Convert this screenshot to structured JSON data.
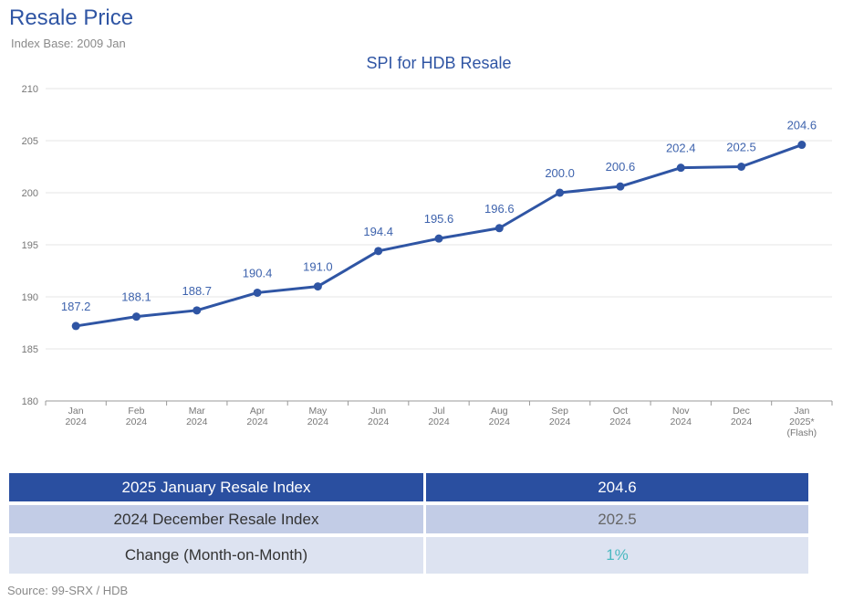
{
  "header": {
    "title": "Resale Price",
    "subtitle": "Index Base: 2009 Jan"
  },
  "chart_data": {
    "type": "line",
    "title": "SPI for HDB Resale",
    "categories": [
      [
        "Jan",
        "2024"
      ],
      [
        "Feb",
        "2024"
      ],
      [
        "Mar",
        "2024"
      ],
      [
        "Apr",
        "2024"
      ],
      [
        "May",
        "2024"
      ],
      [
        "Jun",
        "2024"
      ],
      [
        "Jul",
        "2024"
      ],
      [
        "Aug",
        "2024"
      ],
      [
        "Sep",
        "2024"
      ],
      [
        "Oct",
        "2024"
      ],
      [
        "Nov",
        "2024"
      ],
      [
        "Dec",
        "2024"
      ],
      [
        "Jan",
        "2025*",
        "(Flash)"
      ]
    ],
    "values": [
      187.2,
      188.1,
      188.7,
      190.4,
      191.0,
      194.4,
      195.6,
      196.6,
      200.0,
      200.6,
      202.4,
      202.5,
      204.6
    ],
    "data_labels": [
      "187.2",
      "188.1",
      "188.7",
      "190.4",
      "191.0",
      "194.4",
      "195.6",
      "196.6",
      "200.0",
      "200.6",
      "202.4",
      "202.5",
      "204.6"
    ],
    "yticks": [
      180,
      185,
      190,
      195,
      200,
      205,
      210
    ],
    "ylim": [
      180,
      210
    ],
    "xlabel": "",
    "ylabel": "",
    "grid": true,
    "legend": "none",
    "colors": {
      "line": "#2f55a4",
      "label": "#3e63ad",
      "grid": "#e6e6e6",
      "axis": "#999999",
      "tick": "#777777"
    }
  },
  "summary": {
    "rows": [
      {
        "label": "2025 January Resale Index",
        "value": "204.6"
      },
      {
        "label": "2024 December Resale Index",
        "value": "202.5"
      },
      {
        "label": "Change (Month-on-Month)",
        "value": "1%"
      }
    ]
  },
  "footer": {
    "source": "Source: 99-SRX / HDB"
  }
}
